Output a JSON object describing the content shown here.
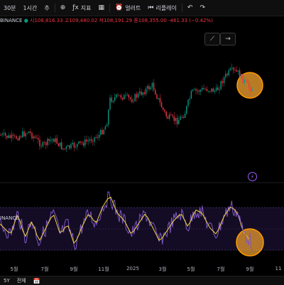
{
  "toolbar": {
    "interval": "30분",
    "interval2": "1시간",
    "chart_type_label": "추",
    "indicators_label": "지표",
    "alert_label": "얼러트",
    "replay_label": "리플레이"
  },
  "legend": {
    "exchange": "BINANCE",
    "ohlc": "시108,816.33 고109,480.02 저108,191.29 종108,355.00 -461.33 (−0.42%)"
  },
  "indicator": {
    "label": "INANCE"
  },
  "time_axis": [
    "5월",
    "7월",
    "9월",
    "11월",
    "2025",
    "3월",
    "5월",
    "7월",
    "9월",
    "11"
  ],
  "bottom": {
    "range_label": "5Y",
    "all_label": "전체"
  },
  "colors": {
    "background": "#000000",
    "up": "#089981",
    "down": "#f23645",
    "rsi_line": "#7e57c2",
    "rsi_ma": "#f5d443",
    "highlight": "#f7a530"
  }
}
